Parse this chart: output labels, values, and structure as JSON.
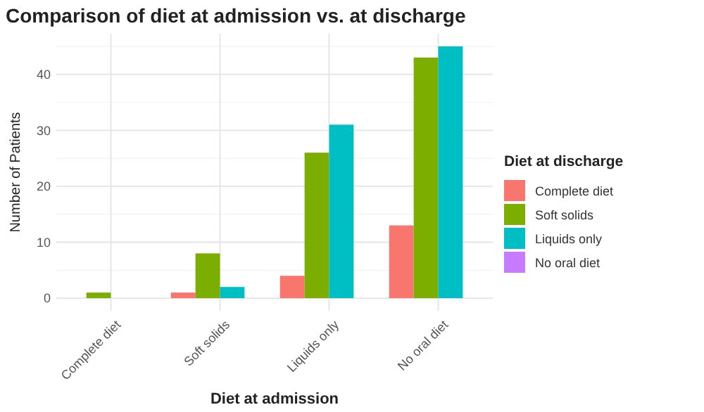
{
  "chart_data": {
    "type": "bar",
    "title": "Comparison of diet at admission vs. at discharge",
    "xlabel": "Diet at admission",
    "ylabel": "Number of Patients",
    "legend_title": "Diet at discharge",
    "categories": [
      "Complete diet",
      "Soft solids",
      "Liquids only",
      "No oral diet"
    ],
    "series": [
      {
        "name": "Complete diet",
        "color": "#f8766d",
        "values": [
          null,
          1,
          4,
          13
        ]
      },
      {
        "name": "Soft solids",
        "color": "#7cae00",
        "values": [
          1,
          8,
          26,
          43
        ]
      },
      {
        "name": "Liquids only",
        "color": "#00bfc4",
        "values": [
          null,
          2,
          31,
          45
        ]
      },
      {
        "name": "No oral diet",
        "color": "#c77cff",
        "values": [
          null,
          null,
          null,
          null
        ]
      }
    ],
    "ylim": [
      -2.25,
      47.25
    ],
    "yticks": [
      0,
      {
        "value": 5,
        "label": null
      },
      10,
      {
        "value": 15,
        "label": null
      },
      20,
      {
        "value": 25,
        "label": null
      },
      30,
      {
        "value": 35,
        "label": null
      },
      40,
      {
        "value": 45,
        "label": null
      }
    ],
    "grid": true,
    "legend": "right"
  }
}
